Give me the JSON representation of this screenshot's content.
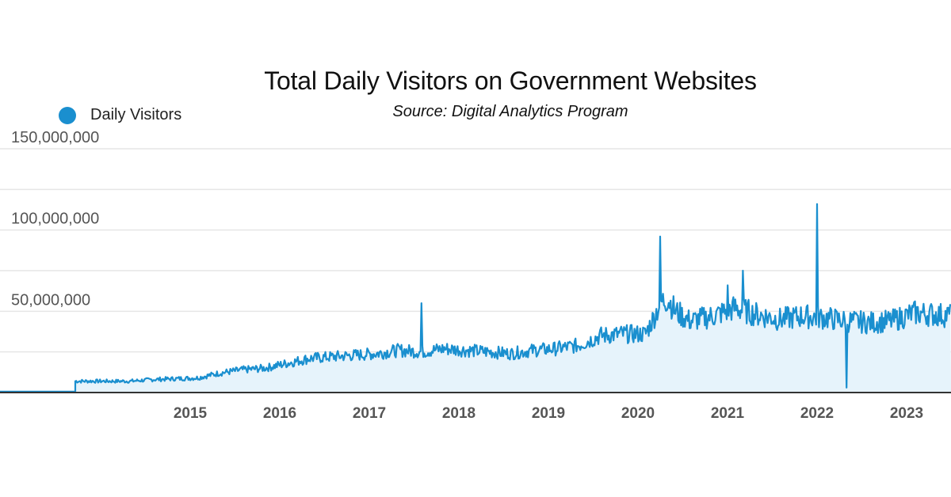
{
  "chart_data": {
    "type": "area",
    "title": "Total Daily Visitors on Government Websites",
    "subtitle": "Source: Digital Analytics Program",
    "legend": {
      "position": "top-left",
      "entries": [
        "Daily Visitors"
      ]
    },
    "series": [
      {
        "name": "Daily Visitors",
        "color": "#1a8fcf",
        "fill": "#e6f3fb",
        "x": [
          "2014-05",
          "2014-08",
          "2014-11",
          "2015-02",
          "2015-05",
          "2015-08",
          "2015-11",
          "2016-02",
          "2016-05",
          "2016-08",
          "2016-11",
          "2017-02",
          "2017-05",
          "2017-08",
          "2017-11",
          "2018-02",
          "2018-05",
          "2018-08",
          "2018-11",
          "2019-02",
          "2019-05",
          "2019-08",
          "2019-11",
          "2020-02",
          "2020-03",
          "2020-04",
          "2020-05",
          "2020-06",
          "2020-08",
          "2020-11",
          "2021-02",
          "2021-05",
          "2021-08",
          "2021-11",
          "2022-02",
          "2022-05",
          "2022-08",
          "2022-11",
          "2023-02",
          "2023-05",
          "2023-08"
        ],
        "values": [
          7000000,
          8000000,
          8500000,
          9000000,
          12000000,
          14000000,
          15000000,
          18000000,
          21000000,
          22000000,
          23000000,
          24000000,
          26000000,
          25000000,
          27000000,
          26000000,
          25000000,
          24000000,
          26000000,
          27000000,
          29000000,
          35000000,
          36000000,
          36000000,
          45000000,
          55000000,
          58000000,
          50000000,
          44000000,
          47000000,
          52000000,
          48000000,
          45000000,
          47000000,
          46000000,
          44000000,
          43000000,
          44000000,
          49000000,
          48000000,
          47000000
        ],
        "spikes": [
          {
            "x": "2017-08",
            "value": 55000000
          },
          {
            "x": "2020-04",
            "value": 96000000
          },
          {
            "x": "2021-01",
            "value": 66000000
          },
          {
            "x": "2021-03",
            "value": 75000000
          },
          {
            "x": "2022-01",
            "value": 116000000
          },
          {
            "x": "2022-05",
            "value": 3000000
          }
        ]
      }
    ],
    "x_ticks": [
      "2015",
      "2016",
      "2017",
      "2018",
      "2019",
      "2020",
      "2021",
      "2022",
      "2023"
    ],
    "y_ticks": [
      "50,000,000",
      "100,000,000",
      "150,000,000"
    ],
    "ylim": [
      0,
      150000000
    ],
    "grid": true
  }
}
